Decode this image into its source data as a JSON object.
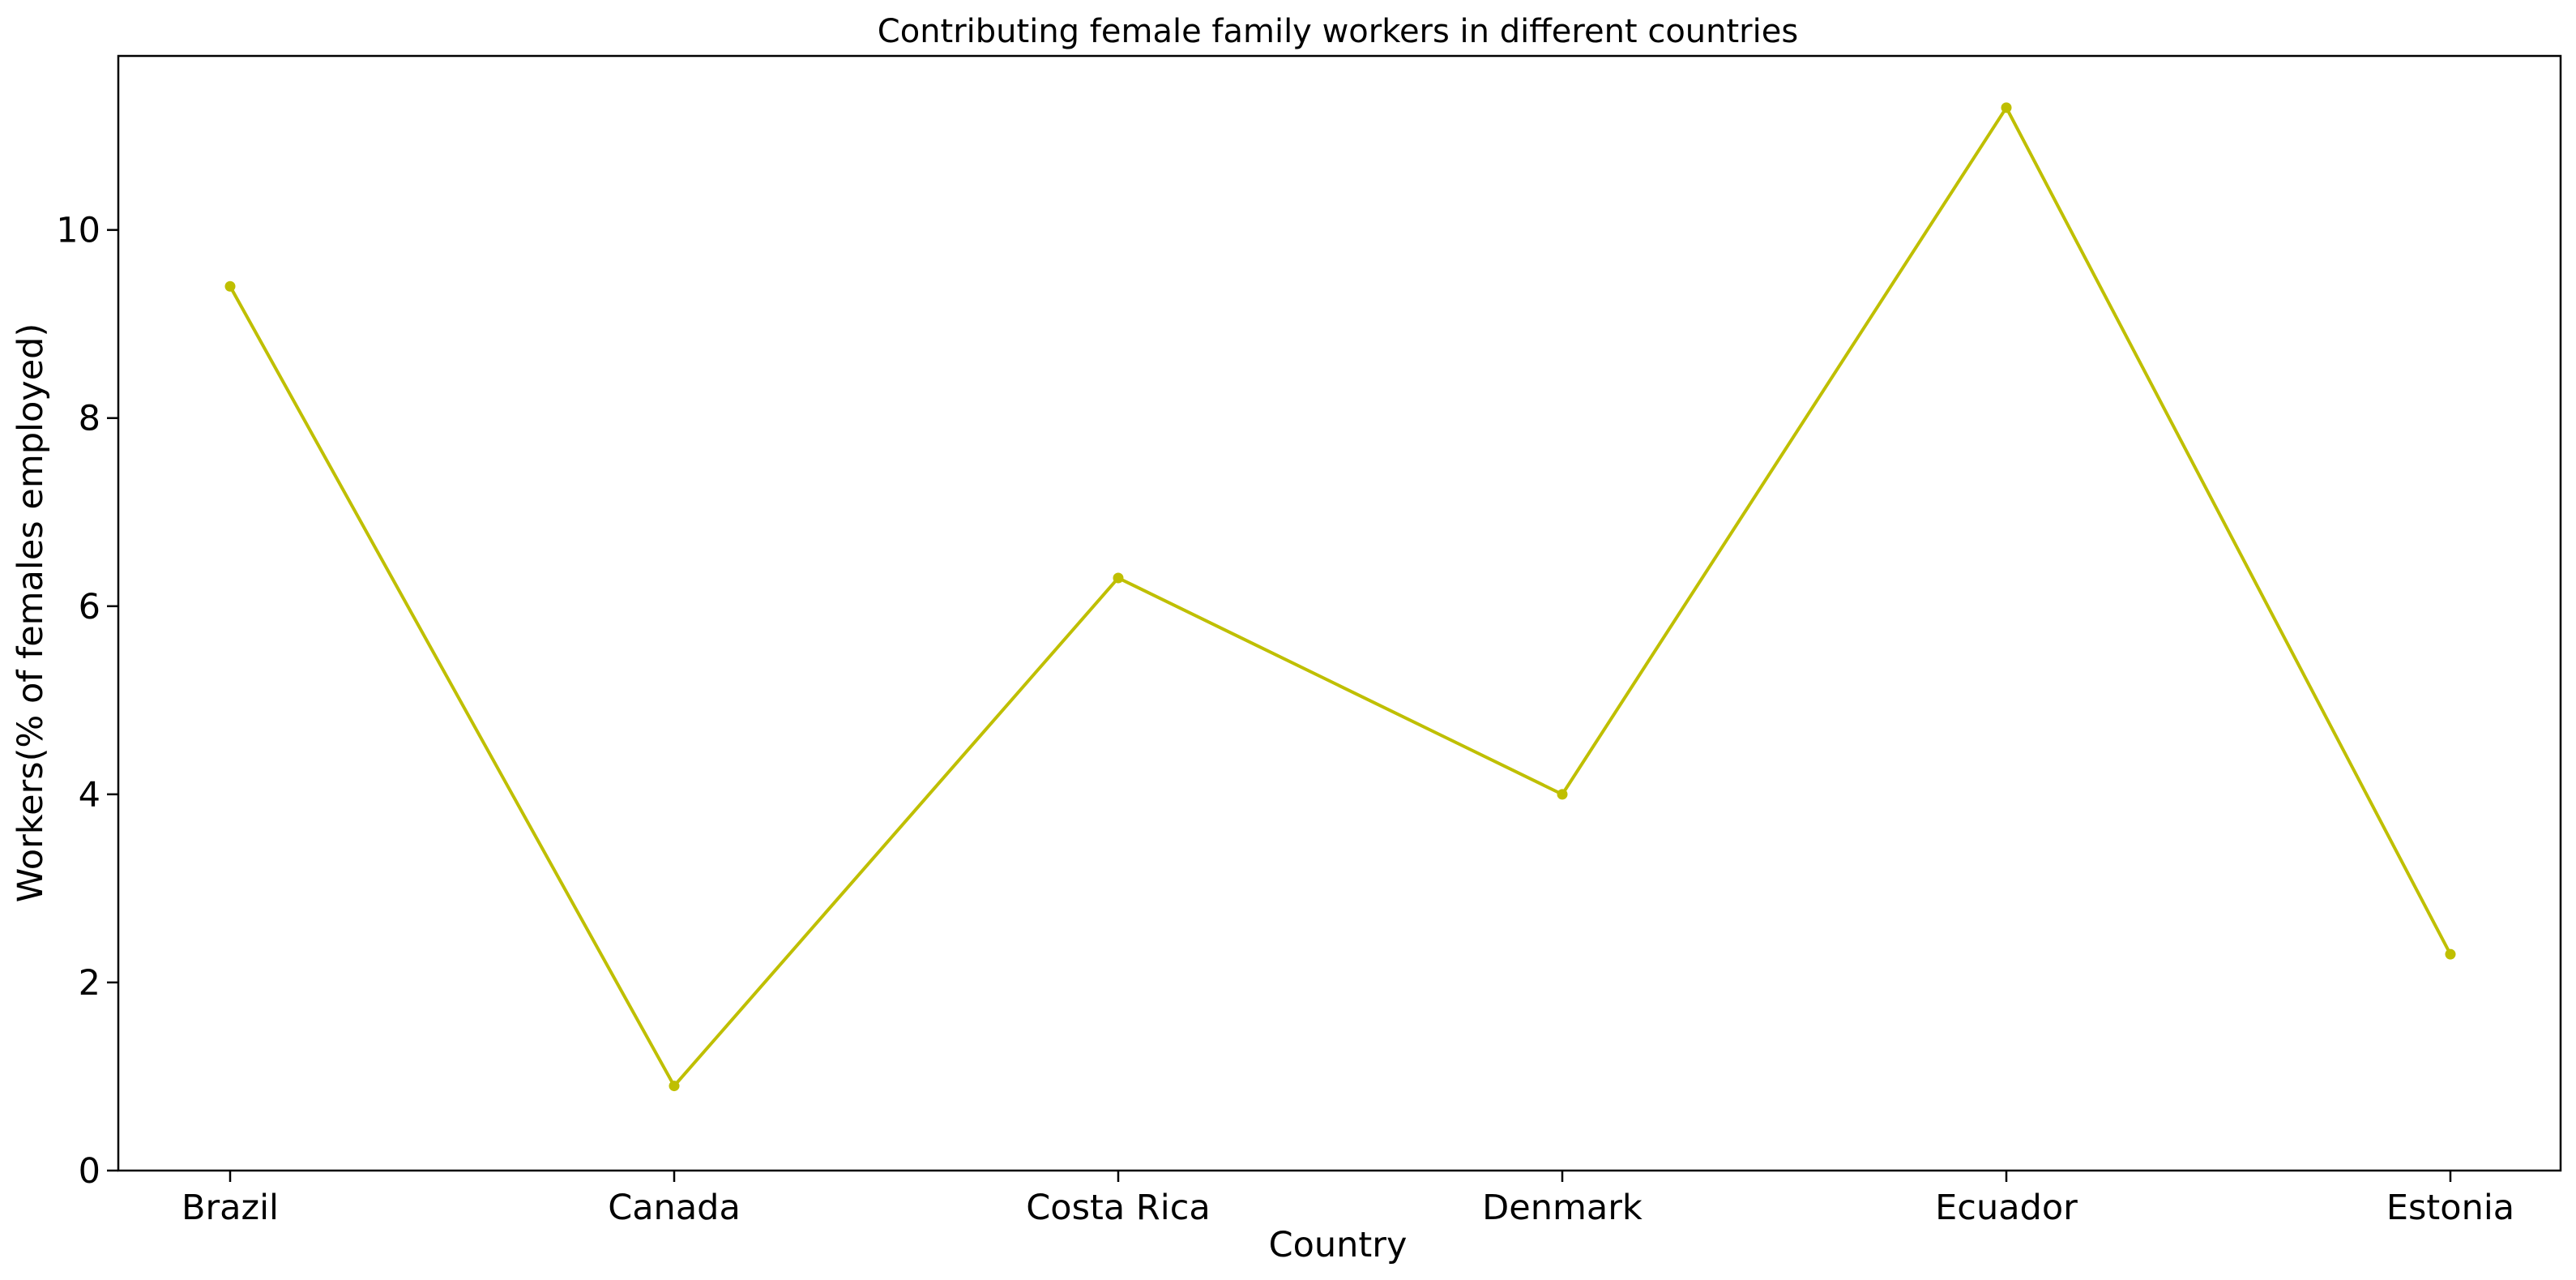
{
  "chart_data": {
    "type": "line",
    "title": "Contributing female family workers in different countries",
    "xlabel": "Country",
    "ylabel": "Workers(% of females employed)",
    "categories": [
      "Brazil",
      "Canada",
      "Costa Rica",
      "Denmark",
      "Ecuador",
      "Estonia"
    ],
    "series": [
      {
        "values": [
          9.4,
          0.9,
          6.3,
          4.0,
          11.3,
          2.3
        ],
        "color": "#bfbf00",
        "marker": "circle"
      }
    ],
    "ylim": [
      0,
      11.85
    ],
    "yticks": [
      0,
      2,
      4,
      6,
      8,
      10
    ],
    "ytick_labels": [
      "0",
      "2",
      "4",
      "6",
      "8",
      "10"
    ],
    "grid": false,
    "legend": "none"
  }
}
